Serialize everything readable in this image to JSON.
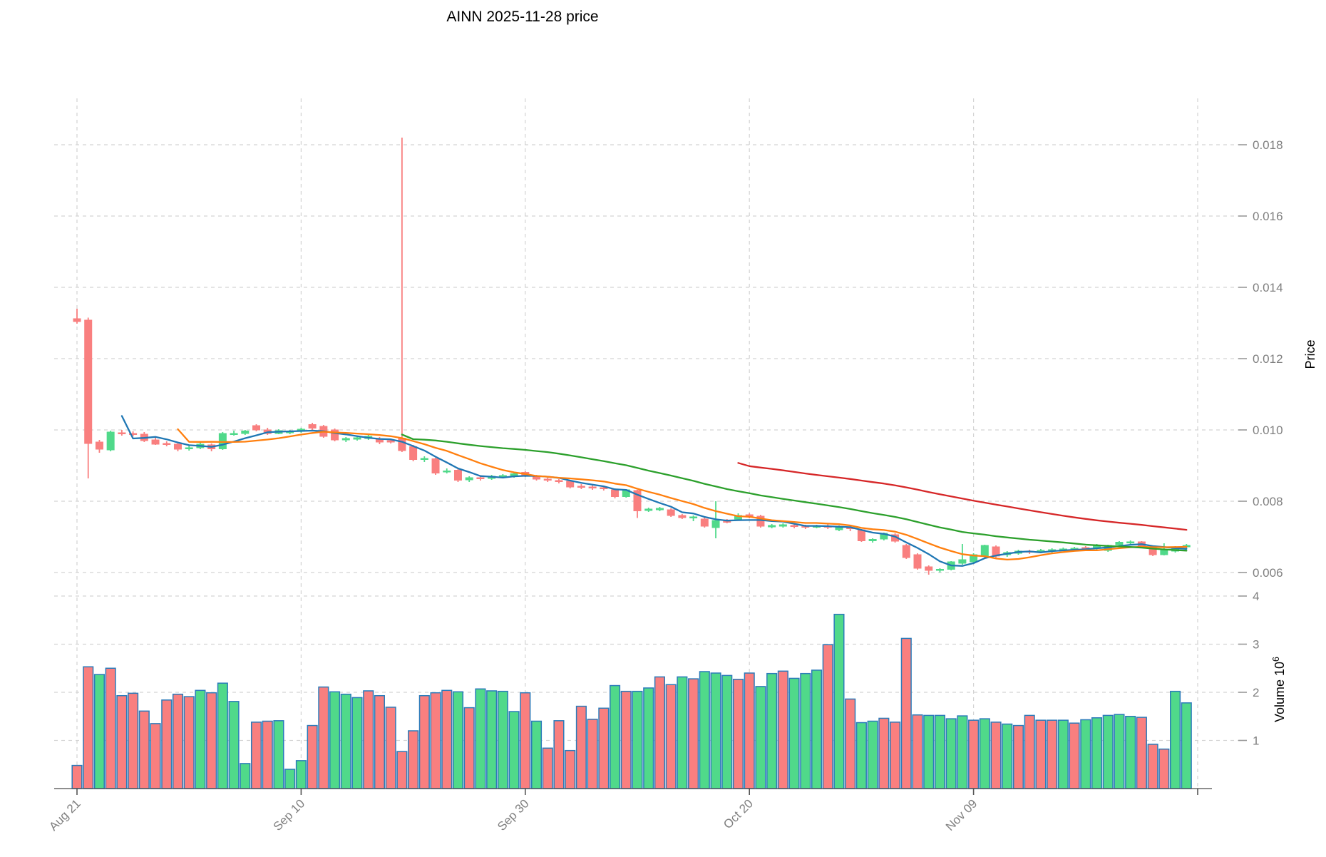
{
  "chart_data": {
    "type": "candlestick",
    "title": "AINN  2025-11-28  price",
    "x_axis": {
      "tick_labels": [
        "Aug 21",
        "Sep 10",
        "Sep 30",
        "Oct 20",
        "Nov 09",
        ""
      ],
      "tick_indices": [
        0,
        20,
        40,
        60,
        80,
        100
      ],
      "n_candles": 100,
      "grid": true
    },
    "price_axis": {
      "label": "Price",
      "ticks": [
        0.006,
        0.008,
        0.01,
        0.012,
        0.014,
        0.016,
        0.018
      ],
      "side": "right",
      "grid": true
    },
    "volume_axis": {
      "label_main": "Volume 10",
      "label_exp": "6",
      "ticks": [
        1,
        2,
        3,
        4
      ],
      "unit": 1000000,
      "side": "right",
      "grid": true
    },
    "price_unit": 1e-05,
    "volume_in_millions": true,
    "ohlcv": [
      [
        1312,
        1340,
        1298,
        1304,
        0.48
      ],
      [
        1308,
        1315,
        864,
        962,
        2.53
      ],
      [
        966,
        972,
        936,
        946,
        2.37
      ],
      [
        944,
        998,
        940,
        994,
        2.5
      ],
      [
        992,
        1000,
        984,
        990,
        1.93
      ],
      [
        990,
        996,
        982,
        988,
        1.98
      ],
      [
        988,
        994,
        966,
        970,
        1.61
      ],
      [
        972,
        978,
        958,
        960,
        1.35
      ],
      [
        962,
        968,
        954,
        960,
        1.84
      ],
      [
        960,
        964,
        940,
        946,
        1.96
      ],
      [
        948,
        956,
        942,
        950,
        1.91
      ],
      [
        950,
        964,
        946,
        960,
        2.04
      ],
      [
        958,
        962,
        940,
        947,
        1.99
      ],
      [
        947,
        994,
        944,
        990,
        2.19
      ],
      [
        988,
        998,
        984,
        990,
        1.81
      ],
      [
        990,
        1000,
        986,
        997,
        0.52
      ],
      [
        1012,
        1016,
        996,
        1000,
        1.38
      ],
      [
        1000,
        1006,
        986,
        990,
        1.4
      ],
      [
        990,
        1002,
        988,
        998,
        1.41
      ],
      [
        993,
        1000,
        988,
        995,
        0.4
      ],
      [
        996,
        1006,
        992,
        1002,
        0.58
      ],
      [
        1015,
        1020,
        1000,
        1005,
        1.31
      ],
      [
        1010,
        1014,
        978,
        982,
        2.11
      ],
      [
        1000,
        1004,
        968,
        972,
        2.01
      ],
      [
        972,
        980,
        966,
        976,
        1.96
      ],
      [
        974,
        982,
        970,
        978,
        1.89
      ],
      [
        976,
        988,
        972,
        982,
        2.03
      ],
      [
        975,
        980,
        960,
        966,
        1.93
      ],
      [
        970,
        976,
        962,
        966,
        1.69
      ],
      [
        977,
        1820,
        938,
        942,
        0.77
      ],
      [
        953,
        958,
        912,
        917,
        1.2
      ],
      [
        918,
        926,
        910,
        920,
        1.93
      ],
      [
        919,
        922,
        874,
        879,
        1.99
      ],
      [
        884,
        892,
        878,
        885,
        2.04
      ],
      [
        887,
        890,
        854,
        859,
        2.01
      ],
      [
        860,
        870,
        854,
        866,
        1.68
      ],
      [
        866,
        870,
        858,
        864,
        2.07
      ],
      [
        864,
        874,
        860,
        870,
        2.03
      ],
      [
        868,
        876,
        864,
        872,
        2.02
      ],
      [
        872,
        880,
        866,
        877,
        1.6
      ],
      [
        881,
        884,
        868,
        873,
        1.99
      ],
      [
        870,
        874,
        858,
        862,
        1.4
      ],
      [
        862,
        866,
        854,
        860,
        0.84
      ],
      [
        858,
        862,
        850,
        855,
        1.41
      ],
      [
        856,
        860,
        836,
        840,
        0.79
      ],
      [
        842,
        848,
        834,
        840,
        1.71
      ],
      [
        840,
        844,
        832,
        838,
        1.44
      ],
      [
        838,
        842,
        830,
        836,
        1.67
      ],
      [
        832,
        836,
        808,
        813,
        2.14
      ],
      [
        813,
        834,
        810,
        832,
        2.02
      ],
      [
        830,
        832,
        753,
        773,
        2.02
      ],
      [
        774,
        782,
        770,
        778,
        2.09
      ],
      [
        776,
        784,
        772,
        780,
        2.32
      ],
      [
        776,
        780,
        756,
        760,
        2.16
      ],
      [
        760,
        764,
        750,
        754,
        2.32
      ],
      [
        754,
        760,
        744,
        756,
        2.28
      ],
      [
        750,
        754,
        726,
        730,
        2.43
      ],
      [
        726,
        800,
        696,
        746,
        2.4
      ],
      [
        744,
        750,
        738,
        742,
        2.35
      ],
      [
        750,
        766,
        746,
        760,
        2.27
      ],
      [
        762,
        766,
        752,
        758,
        2.4
      ],
      [
        758,
        762,
        726,
        730,
        2.12
      ],
      [
        728,
        736,
        724,
        732,
        2.39
      ],
      [
        730,
        738,
        726,
        734,
        2.44
      ],
      [
        732,
        736,
        724,
        730,
        2.29
      ],
      [
        730,
        734,
        722,
        728,
        2.39
      ],
      [
        728,
        734,
        724,
        730,
        2.46
      ],
      [
        730,
        736,
        722,
        728,
        2.99
      ],
      [
        720,
        732,
        716,
        726,
        3.62
      ],
      [
        726,
        730,
        716,
        724,
        1.86
      ],
      [
        720,
        722,
        686,
        689,
        1.37
      ],
      [
        689,
        696,
        684,
        693,
        1.4
      ],
      [
        694,
        712,
        690,
        710,
        1.46
      ],
      [
        706,
        710,
        684,
        688,
        1.38
      ],
      [
        676,
        680,
        638,
        642,
        3.12
      ],
      [
        650,
        654,
        608,
        612,
        1.53
      ],
      [
        616,
        620,
        594,
        606,
        1.52
      ],
      [
        606,
        612,
        600,
        609,
        1.52
      ],
      [
        609,
        632,
        606,
        630,
        1.45
      ],
      [
        626,
        680,
        622,
        636,
        1.51
      ],
      [
        630,
        654,
        626,
        650,
        1.42
      ],
      [
        646,
        678,
        642,
        676,
        1.45
      ],
      [
        672,
        676,
        642,
        646,
        1.38
      ],
      [
        650,
        660,
        644,
        656,
        1.34
      ],
      [
        654,
        664,
        650,
        660,
        1.31
      ],
      [
        660,
        664,
        652,
        658,
        1.52
      ],
      [
        658,
        666,
        654,
        662,
        1.42
      ],
      [
        660,
        668,
        656,
        664,
        1.42
      ],
      [
        664,
        670,
        660,
        666,
        1.42
      ],
      [
        666,
        672,
        662,
        668,
        1.36
      ],
      [
        670,
        674,
        662,
        666,
        1.43
      ],
      [
        668,
        680,
        664,
        676,
        1.47
      ],
      [
        662,
        678,
        658,
        676,
        1.52
      ],
      [
        678,
        688,
        674,
        685,
        1.54
      ],
      [
        684,
        690,
        680,
        686,
        1.5
      ],
      [
        686,
        688,
        670,
        674,
        1.48
      ],
      [
        672,
        676,
        646,
        650,
        0.92
      ],
      [
        650,
        682,
        648,
        662,
        0.82
      ],
      [
        660,
        674,
        656,
        670,
        2.02
      ],
      [
        672,
        680,
        668,
        676,
        1.78
      ]
    ],
    "volume_direction": "DDUDDDDDDDDUDUUUDDUUUDDUUUDDDDDDDDUDUUUUDUDDDDDDUDUUDDUDUUUDDUUDUUUDUDUUDDDDUUUUDUDUDDDDUDUUUUUDDDUU",
    "moving_averages": [
      {
        "name": "MA5",
        "period": 5,
        "color": "#1f77b4"
      },
      {
        "name": "MA10",
        "period": 10,
        "color": "#ff7f0e"
      },
      {
        "name": "MA30",
        "period": 30,
        "color": "#2ca02c"
      },
      {
        "name": "MA60",
        "period": 60,
        "color": "#d62728"
      }
    ],
    "colors": {
      "up": "#50d98a",
      "down": "#f97f7f",
      "bar_edge": "#2b7bba",
      "grid": "#d3d3d3",
      "tick_text": "#7f7f7f",
      "title_text": "#111111",
      "axis_label_text": "#1a1a1a",
      "spine": "#4a4a4a"
    },
    "legend": "none"
  }
}
